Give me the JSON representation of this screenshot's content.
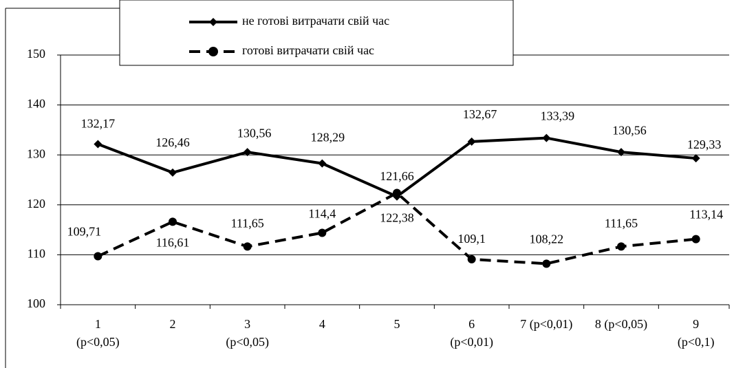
{
  "chart_data": {
    "type": "line",
    "categories": [
      "1\n(p<0,05)",
      "2",
      "3\n(p<0,05)",
      "4",
      "5",
      "6\n(p<0,01)",
      "7 (p<0,01)",
      "8 (p<0,05)",
      "9\n(p<0,1)"
    ],
    "series": [
      {
        "name": "не готові витрачати свій час",
        "color": "#000000",
        "dashed": false,
        "marker": "diamond",
        "values": [
          132.17,
          126.46,
          130.56,
          128.29,
          121.66,
          132.67,
          133.39,
          130.56,
          129.33
        ],
        "value_labels": [
          "132,17",
          "126,46",
          "130,56",
          "128,29",
          "121,66",
          "132,67",
          "133,39",
          "130,56",
          "129,33"
        ]
      },
      {
        "name": "готові витрачати свій час",
        "color": "#000000",
        "dashed": true,
        "marker": "circle",
        "values": [
          109.71,
          116.61,
          111.65,
          114.4,
          122.38,
          109.1,
          108.22,
          111.65,
          113.14
        ],
        "value_labels": [
          "109,71",
          "116,61",
          "111,65",
          "114,4",
          "122,38",
          "109,1",
          "108,22",
          "111,65",
          "113,14"
        ]
      }
    ],
    "ylim": [
      100,
      150
    ],
    "yticks": [
      100,
      110,
      120,
      130,
      140,
      150
    ],
    "grid": true
  }
}
